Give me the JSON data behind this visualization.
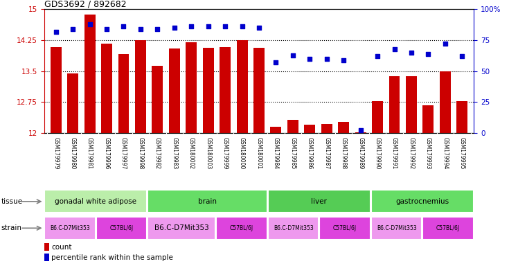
{
  "title": "GDS3692 / 892682",
  "samples": [
    "GSM179979",
    "GSM179980",
    "GSM179981",
    "GSM179996",
    "GSM179997",
    "GSM179998",
    "GSM179982",
    "GSM179983",
    "GSM180002",
    "GSM180003",
    "GSM179999",
    "GSM180000",
    "GSM180001",
    "GSM179984",
    "GSM179985",
    "GSM179986",
    "GSM179987",
    "GSM179988",
    "GSM179989",
    "GSM179990",
    "GSM179991",
    "GSM179992",
    "GSM179993",
    "GSM179994",
    "GSM179995"
  ],
  "count_values": [
    14.08,
    13.45,
    14.87,
    14.17,
    13.92,
    14.25,
    13.63,
    14.05,
    14.2,
    14.07,
    14.08,
    14.25,
    14.07,
    12.15,
    12.32,
    12.2,
    12.22,
    12.27,
    12.02,
    12.78,
    13.38,
    13.38,
    12.68,
    13.5,
    12.78
  ],
  "percentile_values": [
    82,
    84,
    88,
    84,
    86,
    84,
    84,
    85,
    86,
    86,
    86,
    86,
    85,
    57,
    63,
    60,
    60,
    59,
    2,
    62,
    68,
    65,
    64,
    72,
    62
  ],
  "ylim_left": [
    12,
    15
  ],
  "ylim_right": [
    0,
    100
  ],
  "yticks_left": [
    12,
    12.75,
    13.5,
    14.25,
    15
  ],
  "yticks_right": [
    0,
    25,
    50,
    75,
    100
  ],
  "hlines": [
    12.75,
    13.5,
    14.25
  ],
  "bar_color": "#cc0000",
  "scatter_color": "#0000cc",
  "tissue_groups": [
    {
      "label": "gonadal white adipose",
      "start": 0,
      "end": 5,
      "color": "#bbeeaa"
    },
    {
      "label": "brain",
      "start": 6,
      "end": 12,
      "color": "#66dd66"
    },
    {
      "label": "liver",
      "start": 13,
      "end": 18,
      "color": "#55cc55"
    },
    {
      "label": "gastrocnemius",
      "start": 19,
      "end": 24,
      "color": "#66dd66"
    }
  ],
  "strain_groups": [
    {
      "label": "B6.C-D7Mit353",
      "start": 0,
      "end": 2,
      "color": "#ee99ee"
    },
    {
      "label": "C57BL/6J",
      "start": 3,
      "end": 5,
      "color": "#dd44dd"
    },
    {
      "label": "B6.C-D7Mit353",
      "start": 6,
      "end": 9,
      "color": "#ee99ee"
    },
    {
      "label": "C57BL/6J",
      "start": 10,
      "end": 12,
      "color": "#dd44dd"
    },
    {
      "label": "B6.C-D7Mit353",
      "start": 13,
      "end": 15,
      "color": "#ee99ee"
    },
    {
      "label": "C57BL/6J",
      "start": 16,
      "end": 18,
      "color": "#dd44dd"
    },
    {
      "label": "B6.C-D7Mit353",
      "start": 19,
      "end": 21,
      "color": "#ee99ee"
    },
    {
      "label": "C57BL/6J",
      "start": 22,
      "end": 24,
      "color": "#dd44dd"
    }
  ],
  "tissue_label": "tissue",
  "strain_label": "strain",
  "legend_count": "count",
  "legend_percentile": "percentile rank within the sample",
  "xtick_bg_color": "#cccccc",
  "row_border_color": "#aaaaaa"
}
